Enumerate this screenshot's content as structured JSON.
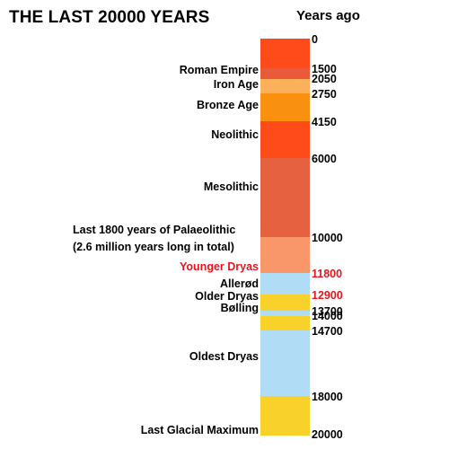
{
  "title": "THE LAST 20000 YEARS",
  "column_header": "Years ago",
  "colors": {
    "recent_red": "#FF4B1A",
    "roman": "#E85A3A",
    "iron_age": "#FBB15C",
    "bronze_age": "#F9900F",
    "mesolithic": "#E56140",
    "palaeolithic": "#F9966A",
    "cold_blue": "#B1DCF6",
    "warm_yellow": "#F9D12B",
    "highlight_text": "#E8141E"
  },
  "segments": [
    {
      "name": "recent",
      "from": 0,
      "to": 1500,
      "color": "#FF4B1A"
    },
    {
      "name": "roman",
      "from": 1500,
      "to": 2050,
      "color": "#E85A3A"
    },
    {
      "name": "iron-age",
      "from": 2050,
      "to": 2750,
      "color": "#FBB15C"
    },
    {
      "name": "bronze-age",
      "from": 2750,
      "to": 4150,
      "color": "#F9900F"
    },
    {
      "name": "neolithic",
      "from": 4150,
      "to": 6000,
      "color": "#FF4B1A"
    },
    {
      "name": "mesolithic",
      "from": 6000,
      "to": 10000,
      "color": "#E56140"
    },
    {
      "name": "palaeolithic",
      "from": 10000,
      "to": 11800,
      "color": "#F9966A"
    },
    {
      "name": "younger-dryas",
      "from": 11800,
      "to": 12900,
      "color": "#B1DCF6"
    },
    {
      "name": "allerod",
      "from": 12900,
      "to": 13700,
      "color": "#F9D12B"
    },
    {
      "name": "older-dryas",
      "from": 13700,
      "to": 14000,
      "color": "#B1DCF6"
    },
    {
      "name": "bolling",
      "from": 14000,
      "to": 14700,
      "color": "#F9D12B"
    },
    {
      "name": "oldest-dryas",
      "from": 14700,
      "to": 18000,
      "color": "#B1DCF6"
    },
    {
      "name": "last-glacial-maximum",
      "from": 18000,
      "to": 20000,
      "color": "#F9D12B"
    }
  ],
  "year_labels": [
    {
      "text": "0",
      "value": 0,
      "highlight": false
    },
    {
      "text": "1500",
      "value": 1500,
      "highlight": false
    },
    {
      "text": "2050",
      "value": 2050,
      "highlight": false
    },
    {
      "text": "2750",
      "value": 2750,
      "highlight": false
    },
    {
      "text": "4150",
      "value": 4150,
      "highlight": false
    },
    {
      "text": "6000",
      "value": 6000,
      "highlight": false
    },
    {
      "text": "10000",
      "value": 10000,
      "highlight": false
    },
    {
      "text": "11800",
      "value": 11800,
      "highlight": true
    },
    {
      "text": "12900",
      "value": 12900,
      "highlight": true
    },
    {
      "text": "13700",
      "value": 13700,
      "highlight": false
    },
    {
      "text": "14000",
      "value": 14000,
      "highlight": false
    },
    {
      "text": "14700",
      "value": 14700,
      "highlight": false
    },
    {
      "text": "18000",
      "value": 18000,
      "highlight": false
    },
    {
      "text": "20000",
      "value": 20000,
      "highlight": false
    }
  ],
  "period_labels": {
    "roman_empire": "Roman Empire",
    "iron_age": "Iron Age",
    "bronze_age": "Bronze Age",
    "neolithic": "Neolithic",
    "mesolithic": "Mesolithic",
    "palaeolithic_line1": "Last 1800 years of Palaeolithic",
    "palaeolithic_line2": "(2.6 million years long in total)",
    "younger_dryas": "Younger Dryas",
    "allerod": "Allerød",
    "older_dryas": "Older Dryas",
    "bolling": "Bølling",
    "oldest_dryas": "Oldest Dryas",
    "last_glacial_maximum": "Last Glacial Maximum"
  }
}
